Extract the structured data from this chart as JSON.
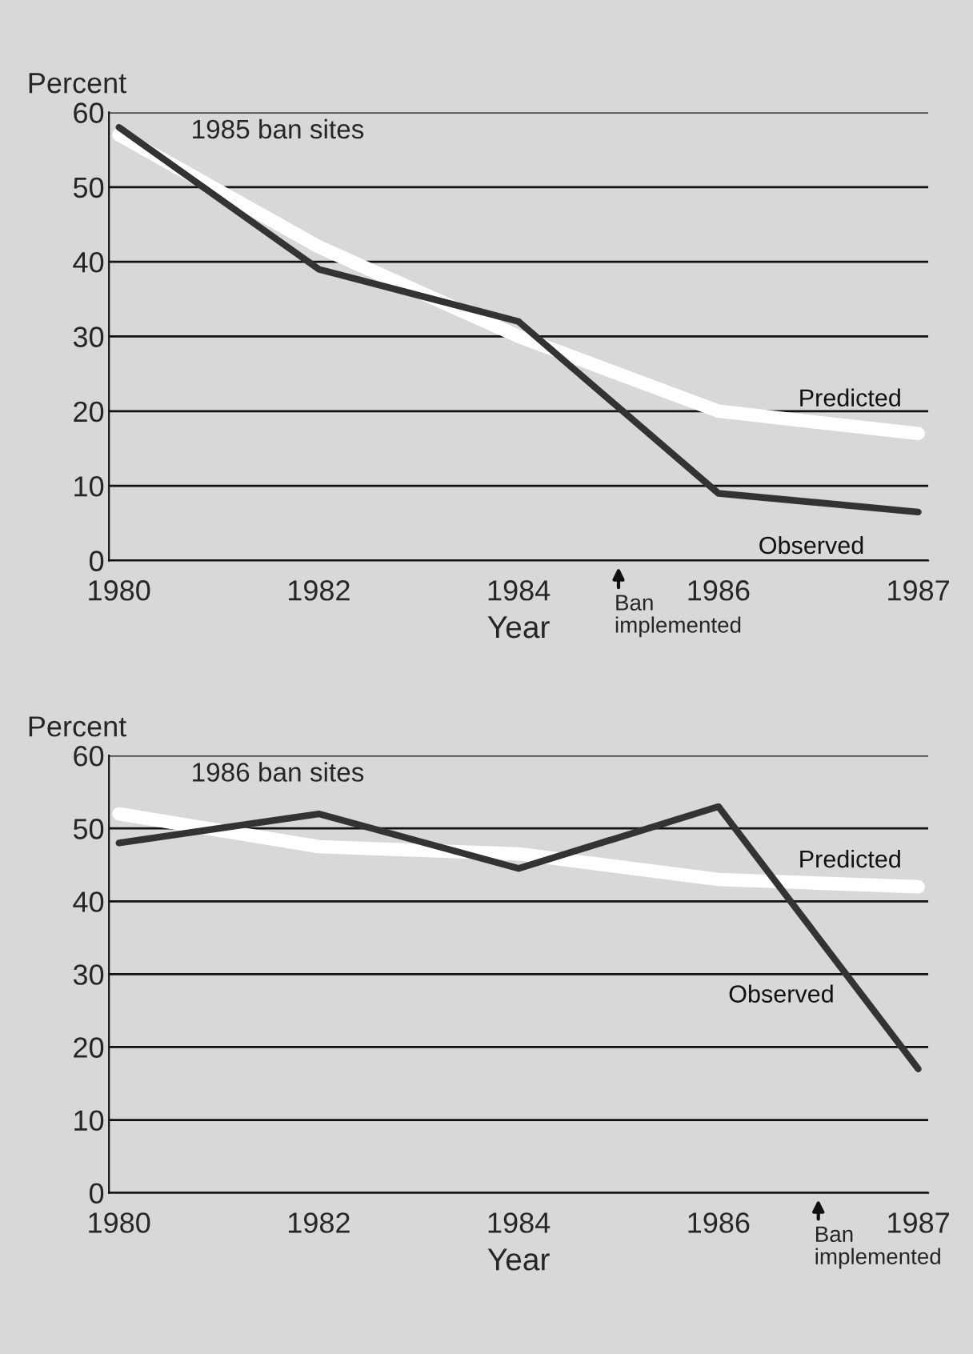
{
  "chart_data": [
    {
      "type": "line",
      "title": "1985 ban sites",
      "ylabel": "Percent",
      "xlabel": "Year",
      "categories": [
        "1980",
        "1982",
        "1984",
        "1986",
        "1987"
      ],
      "ylim": [
        0,
        60
      ],
      "yticks": [
        0,
        10,
        20,
        30,
        40,
        50,
        60
      ],
      "grid": "y",
      "marker": "none",
      "line_style": "solid",
      "series": [
        {
          "name": "Predicted",
          "color": "#ffffff",
          "values": [
            57,
            42,
            30,
            20,
            17
          ]
        },
        {
          "name": "Observed",
          "color": "#333333",
          "values": [
            58,
            39,
            32,
            9,
            6.5
          ]
        }
      ],
      "annotations": [
        "Ban implemented"
      ]
    },
    {
      "type": "line",
      "title": "1986 ban sites",
      "ylabel": "Percent",
      "xlabel": "Year",
      "categories": [
        "1980",
        "1982",
        "1984",
        "1986",
        "1987"
      ],
      "ylim": [
        0,
        60
      ],
      "yticks": [
        0,
        10,
        20,
        30,
        40,
        50,
        60
      ],
      "grid": "y",
      "marker": "none",
      "line_style": "solid",
      "series": [
        {
          "name": "Predicted",
          "color": "#ffffff",
          "values": [
            52,
            47.5,
            46.5,
            43,
            42
          ]
        },
        {
          "name": "Observed",
          "color": "#333333",
          "values": [
            48,
            52,
            44.5,
            53,
            17
          ]
        }
      ],
      "annotations": [
        "Ban implemented"
      ]
    }
  ]
}
